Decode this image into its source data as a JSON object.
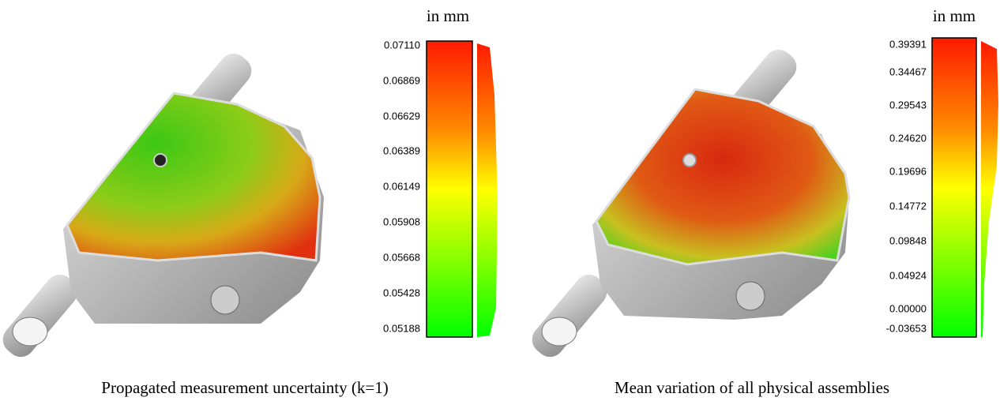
{
  "panels": [
    {
      "unit": "in mm",
      "ticks": [
        "0.07110",
        "0.06869",
        "0.06629",
        "0.06389",
        "0.06149",
        "0.05908",
        "0.05668",
        "0.05428",
        "0.05188"
      ],
      "caption": "Propagated measurement uncertainty (k=1)"
    },
    {
      "unit": "in mm",
      "ticks": [
        "0.39391",
        "0.34467",
        "0.29543",
        "0.24620",
        "0.19696",
        "0.14772",
        "0.09848",
        "0.04924",
        "0.00000",
        "-0.03653"
      ],
      "caption": "Mean variation of all physical assemblies"
    }
  ]
}
